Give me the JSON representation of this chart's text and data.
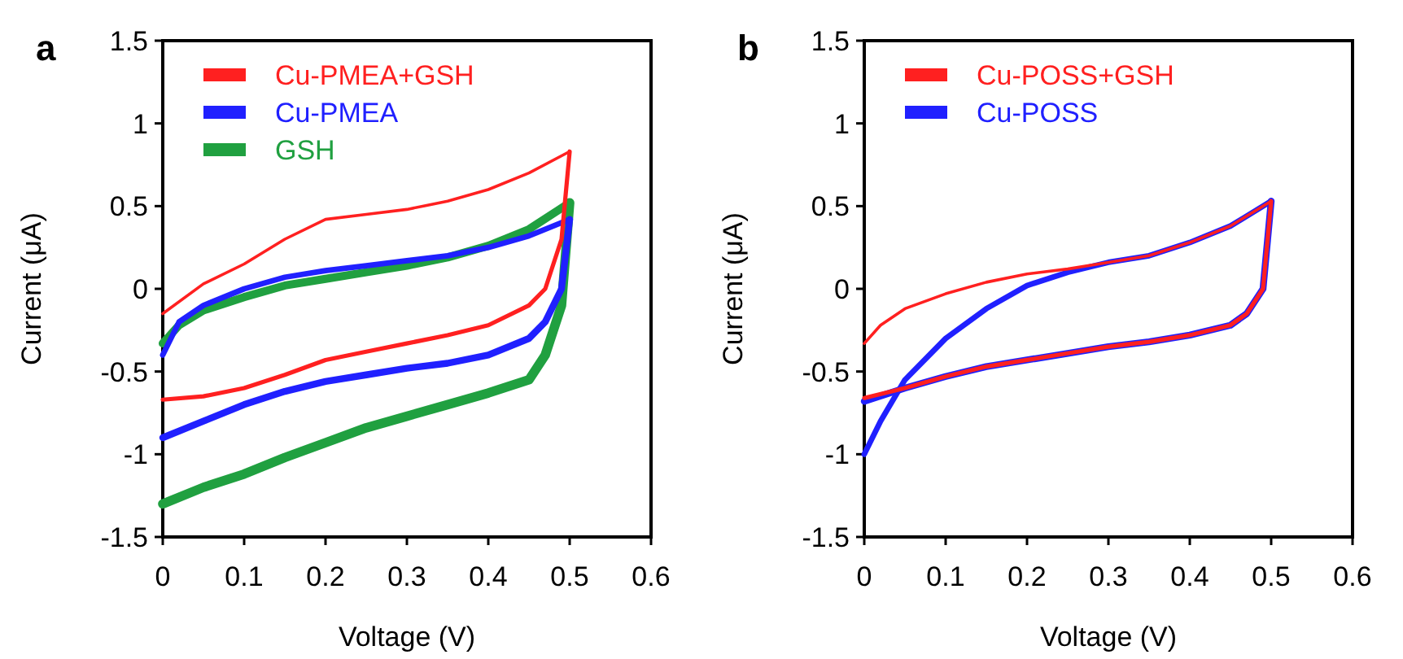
{
  "chart_data": [
    {
      "type": "line",
      "xlabel": "Voltage (V)",
      "ylabel": "Current (μA)",
      "annotations": [
        "a"
      ],
      "xlim": [
        0,
        0.6
      ],
      "ylim": [
        -1.5,
        1.5
      ],
      "xticks": [
        0,
        0.1,
        0.2,
        0.3,
        0.4,
        0.5,
        0.6
      ],
      "yticks": [
        -1.5,
        -1,
        -0.5,
        0,
        0.5,
        1,
        1.5
      ],
      "legend": "top left",
      "grid": false,
      "marker": "none",
      "line_style": "solid",
      "series": [
        {
          "name": "Cu-PMEA+GSH",
          "color": "#ff2020",
          "x": [
            0,
            0.05,
            0.1,
            0.15,
            0.2,
            0.25,
            0.3,
            0.35,
            0.4,
            0.45,
            0.5
          ],
          "values": [
            -0.15,
            0.03,
            0.15,
            0.3,
            0.42,
            0.45,
            0.48,
            0.53,
            0.6,
            0.7,
            0.83
          ]
        },
        {
          "color": "#ff2020",
          "x": [
            0,
            0.05,
            0.1,
            0.15,
            0.2,
            0.25,
            0.3,
            0.35,
            0.4,
            0.45,
            0.47,
            0.49,
            0.5
          ],
          "values": [
            -0.67,
            -0.65,
            -0.6,
            -0.52,
            -0.43,
            -0.38,
            -0.33,
            -0.28,
            -0.22,
            -0.1,
            0.0,
            0.3,
            0.83
          ]
        },
        {
          "name": "Cu-PMEA",
          "color": "#2020ff",
          "x": [
            0,
            0.02,
            0.05,
            0.1,
            0.15,
            0.2,
            0.25,
            0.3,
            0.35,
            0.4,
            0.45,
            0.5
          ],
          "values": [
            -0.4,
            -0.2,
            -0.1,
            0.0,
            0.07,
            0.11,
            0.14,
            0.17,
            0.2,
            0.25,
            0.32,
            0.42
          ]
        },
        {
          "color": "#2020ff",
          "x": [
            0,
            0.05,
            0.1,
            0.15,
            0.2,
            0.25,
            0.3,
            0.35,
            0.4,
            0.45,
            0.47,
            0.49,
            0.5
          ],
          "values": [
            -0.9,
            -0.8,
            -0.7,
            -0.62,
            -0.56,
            -0.52,
            -0.48,
            -0.45,
            -0.4,
            -0.3,
            -0.2,
            0.0,
            0.42
          ]
        },
        {
          "name": "GSH",
          "color": "#20a040",
          "x": [
            0,
            0.02,
            0.05,
            0.1,
            0.15,
            0.2,
            0.25,
            0.3,
            0.35,
            0.4,
            0.45,
            0.5
          ],
          "values": [
            -0.33,
            -0.22,
            -0.13,
            -0.05,
            0.02,
            0.06,
            0.1,
            0.14,
            0.19,
            0.26,
            0.36,
            0.52
          ]
        },
        {
          "color": "#20a040",
          "x": [
            0,
            0.05,
            0.1,
            0.15,
            0.2,
            0.25,
            0.3,
            0.35,
            0.4,
            0.45,
            0.47,
            0.49,
            0.5
          ],
          "values": [
            -1.3,
            -1.2,
            -1.12,
            -1.02,
            -0.93,
            -0.84,
            -0.77,
            -0.7,
            -0.63,
            -0.55,
            -0.4,
            -0.1,
            0.52
          ]
        }
      ]
    },
    {
      "type": "line",
      "xlabel": "Voltage (V)",
      "ylabel": "Current (μA)",
      "annotations": [
        "b"
      ],
      "xlim": [
        0,
        0.6
      ],
      "ylim": [
        -1.5,
        1.5
      ],
      "xticks": [
        0,
        0.1,
        0.2,
        0.3,
        0.4,
        0.5,
        0.6
      ],
      "yticks": [
        -1.5,
        -1,
        -0.5,
        0,
        0.5,
        1,
        1.5
      ],
      "legend": "top left",
      "grid": false,
      "marker": "none",
      "line_style": "solid",
      "series": [
        {
          "name": "Cu-POSS+GSH",
          "color": "#ff2020",
          "x": [
            0,
            0.02,
            0.05,
            0.1,
            0.15,
            0.2,
            0.25,
            0.3,
            0.35,
            0.4,
            0.45,
            0.5
          ],
          "values": [
            -0.33,
            -0.22,
            -0.12,
            -0.03,
            0.04,
            0.09,
            0.12,
            0.16,
            0.2,
            0.28,
            0.38,
            0.53
          ]
        },
        {
          "color": "#ff2020",
          "x": [
            0,
            0.05,
            0.1,
            0.15,
            0.2,
            0.25,
            0.3,
            0.35,
            0.4,
            0.45,
            0.47,
            0.49,
            0.5
          ],
          "values": [
            -0.66,
            -0.6,
            -0.53,
            -0.47,
            -0.43,
            -0.39,
            -0.35,
            -0.32,
            -0.28,
            -0.22,
            -0.15,
            0.0,
            0.53
          ]
        },
        {
          "name": "Cu-POSS",
          "color": "#2020ff",
          "x": [
            0,
            0.02,
            0.05,
            0.1,
            0.15,
            0.2,
            0.25,
            0.3,
            0.35,
            0.4,
            0.45,
            0.5
          ],
          "values": [
            -1.0,
            -0.8,
            -0.55,
            -0.3,
            -0.12,
            0.02,
            0.1,
            0.16,
            0.2,
            0.28,
            0.38,
            0.53
          ]
        },
        {
          "color": "#2020ff",
          "x": [
            0,
            0.05,
            0.1,
            0.15,
            0.2,
            0.25,
            0.3,
            0.35,
            0.4,
            0.45,
            0.47,
            0.49,
            0.5
          ],
          "values": [
            -0.68,
            -0.6,
            -0.53,
            -0.47,
            -0.43,
            -0.39,
            -0.35,
            -0.32,
            -0.28,
            -0.22,
            -0.15,
            0.0,
            0.53
          ]
        }
      ]
    }
  ]
}
